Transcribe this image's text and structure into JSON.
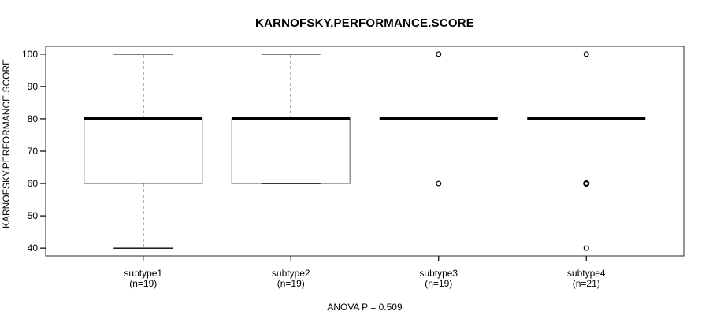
{
  "figure": {
    "title": "KARNOFSKY.PERFORMANCE.SCORE",
    "y_axis_label": "KARNOFSKY.PERFORMANCE.SCORE",
    "footer_annotation": "ANOVA P = 0.509"
  },
  "chart_data": {
    "type": "boxplot",
    "title": "KARNOFSKY.PERFORMANCE.SCORE",
    "xlabel": "",
    "ylabel": "KARNOFSKY.PERFORMANCE.SCORE",
    "annotation": "ANOVA P = 0.509",
    "ylim": [
      37.6,
      102.4
    ],
    "yticks": [
      40,
      50,
      60,
      70,
      80,
      90,
      100
    ],
    "grid": false,
    "legend": false,
    "categories": [
      "subtype1",
      "subtype2",
      "subtype3",
      "subtype4"
    ],
    "category_sublabels": [
      "(n=19)",
      "(n=19)",
      "(n=19)",
      "(n=21)"
    ],
    "series": [
      {
        "name": "subtype1",
        "n": 19,
        "q1": 60,
        "median": 80,
        "q3": 80,
        "whisker_low": 40,
        "whisker_high": 100,
        "outliers": []
      },
      {
        "name": "subtype2",
        "n": 19,
        "q1": 60,
        "median": 80,
        "q3": 80,
        "whisker_low": 60,
        "whisker_high": 100,
        "outliers": []
      },
      {
        "name": "subtype3",
        "n": 19,
        "q1": 80,
        "median": 80,
        "q3": 80,
        "whisker_low": 80,
        "whisker_high": 80,
        "outliers": [
          100,
          60
        ]
      },
      {
        "name": "subtype4",
        "n": 21,
        "q1": 80,
        "median": 80,
        "q3": 80,
        "whisker_low": 80,
        "whisker_high": 80,
        "outliers": [
          100,
          60,
          60,
          40
        ]
      }
    ],
    "colors": {
      "background": "#ffffff",
      "plot_border": "#4d4d4d",
      "box_border": "#7a7a7a",
      "median": "#000000",
      "whisker": "#000000",
      "staple": "#000000",
      "outlier": "#000000",
      "text": "#000000"
    }
  }
}
